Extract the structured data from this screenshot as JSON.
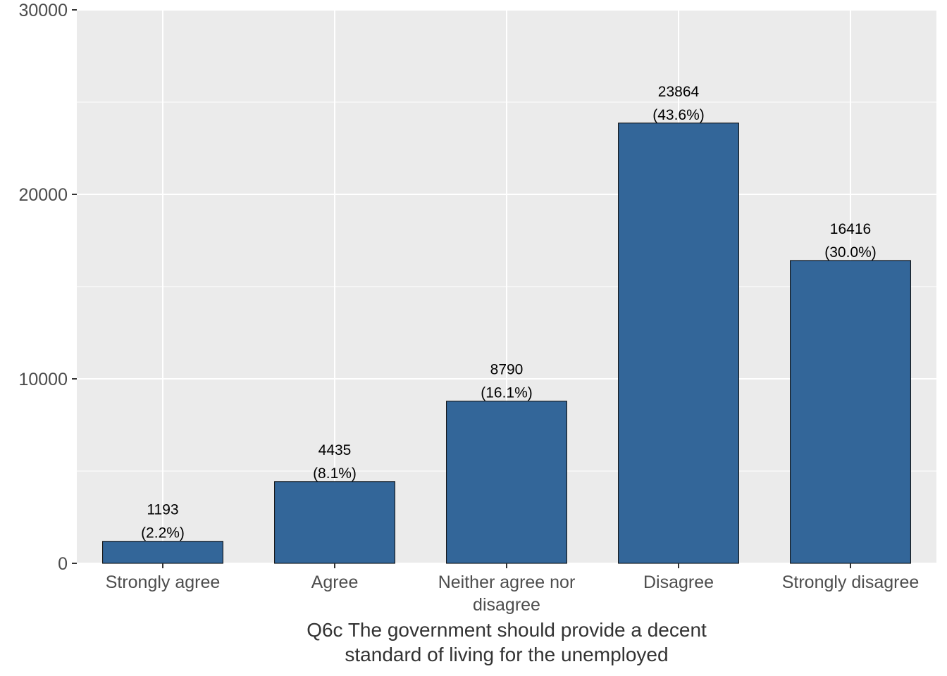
{
  "chart_data": {
    "type": "bar",
    "categories": [
      [
        "Strongly agree"
      ],
      [
        "Agree"
      ],
      [
        "Neither agree nor",
        "disagree"
      ],
      [
        "Disagree"
      ],
      [
        "Strongly disagree"
      ]
    ],
    "values": [
      1193,
      4435,
      8790,
      23864,
      16416
    ],
    "percent_labels": [
      "(2.2%)",
      "(8.1%)",
      "(16.1%)",
      "(43.6%)",
      "(30.0%)"
    ],
    "title": "",
    "xlabel": [
      "Q6c The government should provide a decent",
      "standard of living for the unemployed"
    ],
    "ylabel": "",
    "ylim": [
      0,
      30000
    ],
    "y_ticks": [
      0,
      10000,
      20000,
      30000
    ],
    "grid": true,
    "colors": {
      "bar_fill": "#336699",
      "bar_stroke": "#000000",
      "panel_bg": "#ebebeb",
      "grid": "#ffffff"
    }
  }
}
